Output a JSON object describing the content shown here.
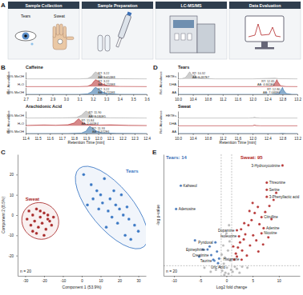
{
  "diagram": {
    "panel": "A",
    "steps": [
      "Sample Collection",
      "Sample Preparation",
      "LC-MS/MS",
      "Data Evaluation"
    ],
    "samples": [
      "Tears",
      "Sweat"
    ]
  },
  "chart_data": [
    {
      "panel": "B",
      "type": "chromatogram",
      "title": "Caffeine",
      "y_label": "Rel. Abundance",
      "xlim": [
        2.7,
        3.6
      ],
      "xticks": [
        2.7,
        2.8,
        2.9,
        {
          "value": 3,
          "label": "3.0"
        },
        3.1,
        3.2,
        3.3,
        3.4,
        3.5,
        3.6
      ],
      "ylim": [
        0,
        100
      ],
      "tick_labels": "x",
      "series": [
        {
          "name": "35% MeOH",
          "color": "#a6a6a6",
          "annotation": [
            "RT: 3.22",
            "AA: 1.653E8"
          ],
          "x": [
            2.7,
            3.1,
            3.16,
            3.19,
            3.21,
            3.22,
            3.24,
            3.27,
            3.31,
            3.4,
            3.6
          ],
          "values": [
            0,
            0,
            6,
            35,
            85,
            100,
            78,
            38,
            10,
            2,
            0
          ]
        },
        {
          "name": "H₂O",
          "color": "#b4282a",
          "annotation": [
            "RT: 3.22",
            "AA: 1.259E8"
          ],
          "x": [
            2.7,
            3.1,
            3.16,
            3.19,
            3.21,
            3.22,
            3.24,
            3.27,
            3.31,
            3.4,
            3.6
          ],
          "values": [
            0,
            0,
            5,
            30,
            82,
            100,
            80,
            40,
            12,
            2,
            0
          ]
        },
        {
          "name": "80% MeOH",
          "color": "#2e6ca4",
          "annotation": [
            "RT: 3.22",
            "AA: 1.711E8"
          ],
          "x": [
            2.7,
            3.1,
            3.16,
            3.19,
            3.21,
            3.22,
            3.24,
            3.27,
            3.31,
            3.4,
            3.6
          ],
          "values": [
            0,
            0,
            7,
            36,
            86,
            100,
            76,
            36,
            9,
            1,
            0
          ]
        }
      ]
    },
    {
      "type": "chromatogram",
      "title": "Arachidonic Acid",
      "y_label": "Rel. Abundance",
      "x_label": "Retention Time [min]",
      "xlim": [
        11.4,
        12.4
      ],
      "xticks": [
        11.4,
        11.5,
        11.6,
        11.7,
        11.8,
        11.9,
        {
          "value": 12,
          "label": "12.0"
        },
        12.1,
        12.2,
        12.3,
        12.4
      ],
      "ylim": [
        0,
        100
      ],
      "tick_labels": "x",
      "series": [
        {
          "name": "35% MeOH",
          "color": "#a6a6a6",
          "annotation": [
            "RT: 11.90",
            "AA: 3.180E5"
          ],
          "x": [
            11.4,
            11.7,
            11.82,
            11.86,
            11.89,
            11.9,
            11.92,
            11.95,
            12.0,
            12.1,
            12.4
          ],
          "values": [
            0,
            2,
            8,
            40,
            90,
            100,
            80,
            40,
            12,
            3,
            0
          ]
        },
        {
          "name": "H₂O",
          "color": "#b4282a",
          "annotation": [
            "RT: 11.84",
            "AA: 2.001E4"
          ],
          "x": [
            11.4,
            11.55,
            11.65,
            11.75,
            11.8,
            11.83,
            11.84,
            11.86,
            11.9,
            12.0,
            12.1,
            12.25,
            12.4
          ],
          "values": [
            5,
            12,
            8,
            15,
            40,
            90,
            100,
            60,
            20,
            10,
            14,
            6,
            4
          ]
        },
        {
          "name": "80% MeOH",
          "color": "#2e6ca4",
          "annotation": [
            "RT: 11.93",
            "AA: 2.372E6"
          ],
          "x": [
            11.4,
            11.75,
            11.86,
            11.9,
            11.92,
            11.93,
            11.95,
            11.98,
            12.03,
            12.15,
            12.4
          ],
          "values": [
            0,
            1,
            6,
            35,
            88,
            100,
            82,
            40,
            10,
            2,
            0
          ]
        }
      ]
    },
    {
      "panel": "D",
      "type": "chromatogram",
      "title": "Tears",
      "y_label": "Rel. Abundance",
      "xlim": [
        10,
        13.2
      ],
      "xticks": [
        {
          "value": 10,
          "label": "10.0"
        },
        10.4,
        10.8,
        11.2,
        11.6,
        {
          "value": 12,
          "label": "12.0"
        },
        12.4,
        12.8,
        13.2
      ],
      "ylim": [
        0,
        100
      ],
      "tick_labels": "x",
      "series": [
        {
          "name": "HETEs",
          "color": "#a6a6a6",
          "annotation": [
            "RT: 10.32",
            "AA: 3.287E7"
          ],
          "x": [
            10.0,
            10.1,
            10.2,
            10.26,
            10.3,
            10.32,
            10.35,
            10.4,
            10.45,
            10.5,
            10.6,
            10.7,
            11.0,
            12.0,
            12.6,
            12.7,
            13.2
          ],
          "values": [
            0,
            2,
            20,
            60,
            95,
            100,
            70,
            45,
            60,
            30,
            15,
            5,
            0,
            0,
            10,
            3,
            0
          ]
        },
        {
          "name": "DHA",
          "color": "#b4282a",
          "annotation": [
            "RT: 12.65",
            "AA: 4.661E6"
          ],
          "x": [
            10.0,
            12.3,
            12.55,
            12.62,
            12.65,
            12.68,
            12.75,
            12.9,
            13.2
          ],
          "values": [
            0,
            0,
            8,
            70,
            100,
            65,
            10,
            1,
            0
          ]
        },
        {
          "name": "AA",
          "color": "#2e6ca4",
          "annotation": [
            "RT: 12.80",
            "AA: 7.046E6"
          ],
          "x": [
            10.0,
            12.5,
            12.7,
            12.77,
            12.8,
            12.83,
            12.9,
            13.05,
            13.2
          ],
          "values": [
            0,
            0,
            8,
            70,
            100,
            60,
            12,
            1,
            0
          ]
        }
      ]
    },
    {
      "type": "chromatogram",
      "title": "Sweat",
      "y_label": "Rel. Abundance",
      "x_label": "Retention Time [min]",
      "xlim": [
        10,
        13.2
      ],
      "xticks": [
        {
          "value": 10,
          "label": "10.0"
        },
        10.4,
        10.8,
        11.2,
        11.6,
        {
          "value": 12,
          "label": "12.0"
        },
        12.4,
        12.8,
        13.2
      ],
      "ylim": [
        0,
        100
      ],
      "tick_labels": "x",
      "series": [
        {
          "name": "HETEs",
          "color": "#a6a6a6",
          "x": [
            10.0,
            11.9,
            12.0,
            12.05,
            12.1,
            12.2,
            13.2
          ],
          "values": [
            0,
            0,
            3,
            12,
            4,
            0,
            0
          ]
        },
        {
          "name": "DHA",
          "color": "#b4282a",
          "x": [
            10.0,
            12.0,
            12.05,
            12.1,
            12.2,
            13.2
          ],
          "values": [
            0,
            0,
            10,
            3,
            0,
            0
          ]
        },
        {
          "name": "AA",
          "color": "#2e6ca4",
          "x": [
            10.0,
            12.7,
            12.8,
            12.9,
            13.2
          ],
          "values": [
            0,
            0,
            2,
            0,
            0
          ]
        }
      ]
    },
    {
      "panel": "C",
      "type": "scatter",
      "x_label": "Component 1 (53.9%)",
      "y_label": "Component 2 (8.5%)",
      "xlim": [
        -34,
        34
      ],
      "xticks": [
        -30,
        -20,
        -10,
        0,
        10,
        20,
        30
      ],
      "ylim": [
        -30,
        30
      ],
      "yticks": [
        -20,
        -10,
        0,
        10,
        20
      ],
      "annotations": [
        "n = 20"
      ],
      "series": [
        {
          "name": "Sweat",
          "color": "#a82a2a",
          "x": [
            -28,
            -26,
            -24,
            -22,
            -25,
            -20,
            -18,
            -27,
            -23,
            -21,
            -19,
            -17,
            -24,
            -16,
            -29,
            -15,
            -22,
            -26,
            -20,
            -18
          ],
          "values": [
            2,
            0,
            3,
            -1,
            -3,
            1,
            -2,
            -5,
            -6,
            -4,
            -7,
            -3,
            -9,
            -5,
            -2,
            -1,
            2,
            -8,
            -10,
            0
          ]
        },
        {
          "name": "Tears",
          "color": "#3b78c4",
          "x": [
            1,
            5,
            8,
            10,
            12,
            15,
            18,
            20,
            22,
            25,
            28,
            30,
            14,
            16,
            19,
            23,
            26,
            11,
            9,
            6,
            21,
            24,
            17,
            13,
            3
          ],
          "values": [
            20,
            15,
            12,
            10,
            18,
            8,
            5,
            3,
            0,
            -2,
            -5,
            -8,
            2,
            -1,
            -4,
            -10,
            -12,
            6,
            3,
            8,
            10,
            4,
            12,
            -6,
            5
          ]
        }
      ]
    },
    {
      "panel": "E",
      "type": "volcano",
      "x_label": "Log2 fold change",
      "y_label": "-log p-value",
      "xlim": [
        -12,
        14
      ],
      "xticks": [
        -10,
        -5,
        0,
        5,
        10
      ],
      "ylim": [
        0,
        12
      ],
      "tick_labels": "x",
      "thresholds": {
        "x": [
          -1,
          1
        ],
        "y": 1
      },
      "annotations": [
        "Tears: 14",
        "Sweat: 95",
        "n = 20"
      ],
      "series": [
        {
          "color": "#3b6fb6",
          "x": [
            -8.7,
            -9.6,
            -2.1,
            -3.6,
            -2.9,
            -2.3,
            -1.6,
            -4.5,
            -3.2,
            -1.8,
            -5.2,
            -2.5,
            -6.0,
            -1.4
          ],
          "values": [
            8.9,
            6.6,
            3.3,
            2.6,
            2.05,
            1.5,
            1.25,
            2.6,
            2.9,
            2.4,
            1.9,
            1.6,
            3.5,
            1.7
          ],
          "labels": [
            "Kahweol",
            "Adenosine",
            "Pyridoxal",
            "Epinephrine",
            "Creatinine",
            "Taurine",
            "Uric Acid",
            null,
            null,
            null,
            null,
            null,
            null,
            null
          ]
        },
        {
          "color": "#b02424",
          "x": [
            2.0,
            2.4,
            2.9,
            10.7,
            7.7,
            7.7,
            7.7,
            6.7,
            7.1,
            6.7,
            1.5,
            1.8,
            2.2,
            2.6,
            3.0,
            3.3,
            3.6,
            3.9,
            4.2,
            4.5,
            4.8,
            5.1,
            5.4,
            5.7,
            6.0,
            6.3,
            6.1,
            5.0,
            4.4,
            3.4,
            2.8,
            7.4,
            8.2,
            8.6,
            9.0,
            9.5,
            8.0,
            7.0,
            1.3,
            2.0
          ],
          "values": [
            4.5,
            3.9,
            1.6,
            10.9,
            9.2,
            8.5,
            7.8,
            5.8,
            4.7,
            4.2,
            1.6,
            2.2,
            2.8,
            3.3,
            2.5,
            3.6,
            4.1,
            2.0,
            5.0,
            3.0,
            5.5,
            4.0,
            6.2,
            3.5,
            6.8,
            5.1,
            2.4,
            7.2,
            6.4,
            5.2,
            4.6,
            6.3,
            6.9,
            5.6,
            7.5,
            8.2,
            3.8,
            3.1,
            2.9,
            1.9
          ],
          "labels": [
            "Dopamine",
            "Isoleucine",
            "Histamine",
            "3-Hydroxycotinine",
            "Threonine",
            "Serine",
            "3-Phenyllactic acid",
            "Citrulline",
            "Adenine",
            "Nicotine",
            null,
            null,
            null,
            null,
            null,
            null,
            null,
            null,
            null,
            null,
            null,
            null,
            null,
            null,
            null,
            null,
            null,
            null,
            null,
            null,
            null,
            null,
            null,
            null,
            null,
            null,
            null,
            null,
            null,
            null
          ]
        },
        {
          "color": "#b3b3b3",
          "x": [
            -0.8,
            -0.5,
            -0.2,
            0.1,
            0.4,
            0.7,
            0.9,
            -0.9,
            0.3,
            -0.6,
            0.6,
            1.2,
            2.0,
            -2.0,
            3.0,
            -3.0,
            1.6,
            -1.2,
            0.0,
            -0.3,
            2.5,
            4.0,
            -4.2,
            0.5,
            -0.4
          ],
          "values": [
            0.5,
            1.2,
            0.3,
            0.8,
            0.2,
            1.5,
            0.6,
            2.1,
            2.5,
            3.0,
            3.4,
            0.4,
            0.7,
            0.6,
            0.9,
            0.4,
            0.9,
            0.9,
            4.2,
            1.8,
            0.3,
            0.8,
            0.8,
            5.0,
            0.1
          ]
        }
      ]
    }
  ]
}
